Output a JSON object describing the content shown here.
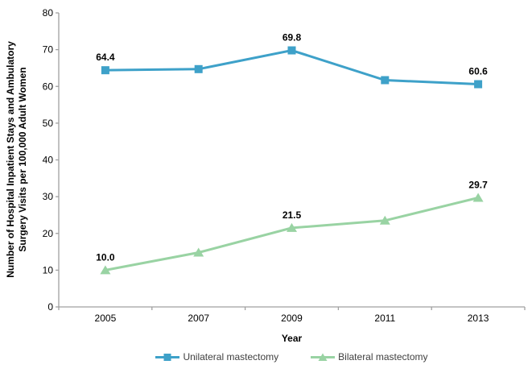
{
  "chart_data": {
    "type": "line",
    "title": "",
    "categories": [
      "2005",
      "2007",
      "2009",
      "2011",
      "2013"
    ],
    "series": [
      {
        "name": "Unilateral mastectomy",
        "color": "#3EA1C9",
        "marker": "square",
        "values": [
          64.4,
          64.7,
          69.8,
          61.7,
          60.6
        ],
        "point_labels": [
          "64.4",
          null,
          "69.8",
          null,
          "60.6"
        ]
      },
      {
        "name": "Bilateral mastectomy",
        "color": "#99D3A3",
        "marker": "triangle",
        "values": [
          10.0,
          14.8,
          21.5,
          23.5,
          29.7
        ],
        "point_labels": [
          "10.0",
          null,
          "21.5",
          null,
          "29.7"
        ]
      }
    ],
    "xlabel": "Year",
    "ylabel": "Number of Hospital Inpatient Stays and Ambulatory Surgery Visits per 100,000 Adult Women",
    "ylabel_lines": [
      "Number of Hospital Inpatient Stays and Ambulatory",
      "Surgery Visits per 100,000 Adult Women"
    ],
    "ylim": [
      0,
      80
    ],
    "yticks": [
      0,
      10,
      20,
      30,
      40,
      50,
      60,
      70,
      80
    ],
    "grid": false,
    "legend_position": "bottom",
    "axis_color": "#A0A0A0",
    "tick_label_color": "#000000",
    "data_label_color": "#000000"
  }
}
